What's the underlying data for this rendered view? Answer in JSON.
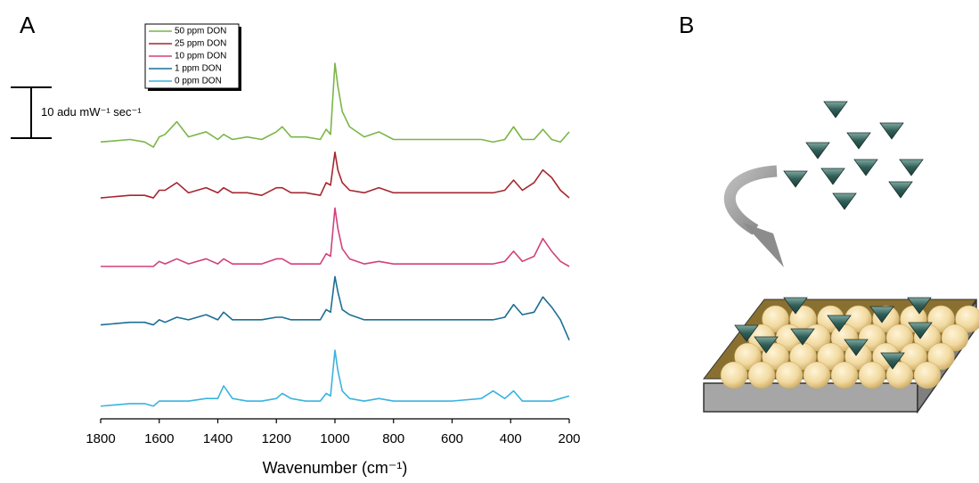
{
  "chart_data": {
    "type": "line",
    "panel_label": "A",
    "x_label": "Wavenumber (cm⁻¹)",
    "x": [
      1800,
      1700,
      1650,
      1620,
      1600,
      1580,
      1540,
      1500,
      1440,
      1400,
      1380,
      1350,
      1300,
      1250,
      1200,
      1180,
      1150,
      1100,
      1050,
      1030,
      1015,
      1000,
      990,
      975,
      950,
      900,
      850,
      800,
      700,
      600,
      500,
      460,
      420,
      390,
      360,
      320,
      290,
      260,
      230,
      200
    ],
    "xlim": [
      1800,
      200
    ],
    "xticks": [
      1800,
      1600,
      1400,
      1200,
      1000,
      800,
      600,
      400,
      200
    ],
    "ylim": [
      0,
      72
    ],
    "scale_bar": {
      "value": 10,
      "label": "10 adu mW⁻¹ sec⁻¹"
    },
    "series": [
      {
        "name": "50 ppm DON",
        "color": "#7ab648",
        "values": [
          54.5,
          55.0,
          54.5,
          53.5,
          55.5,
          56.0,
          58.5,
          55.5,
          56.5,
          55.0,
          56.0,
          55.0,
          55.5,
          55.0,
          56.5,
          57.5,
          55.5,
          55.5,
          55.0,
          57.0,
          56.0,
          70.0,
          65.5,
          60.5,
          57.5,
          55.5,
          56.5,
          55.0,
          55.0,
          55.0,
          55.0,
          54.5,
          55.0,
          57.5,
          55.0,
          55.0,
          57.0,
          55.0,
          54.5,
          56.5
        ]
      },
      {
        "name": "25 ppm DON",
        "color": "#a6262e",
        "values": [
          43.5,
          44.0,
          44.0,
          43.5,
          45.0,
          45.0,
          46.5,
          44.5,
          45.5,
          44.5,
          45.5,
          44.5,
          44.5,
          44.0,
          45.5,
          45.5,
          44.5,
          44.5,
          44.0,
          46.5,
          46.0,
          52.5,
          49.0,
          46.5,
          45.0,
          44.5,
          45.5,
          44.5,
          44.5,
          44.5,
          44.5,
          44.5,
          45.0,
          47.0,
          45.0,
          46.5,
          49.0,
          47.5,
          45.0,
          43.5
        ]
      },
      {
        "name": "10 ppm DON",
        "color": "#d2417a",
        "values": [
          30.0,
          30.0,
          30.0,
          30.0,
          31.0,
          30.5,
          31.5,
          30.5,
          31.5,
          30.5,
          31.5,
          30.5,
          30.5,
          30.5,
          31.5,
          31.5,
          30.5,
          30.5,
          30.5,
          32.5,
          32.0,
          41.5,
          37.5,
          33.5,
          31.5,
          30.5,
          31.0,
          30.5,
          30.5,
          30.5,
          30.5,
          30.5,
          31.0,
          33.0,
          31.0,
          32.0,
          35.5,
          33.0,
          31.0,
          30.0
        ]
      },
      {
        "name": "1 ppm DON",
        "color": "#1c6e94",
        "values": [
          18.5,
          19.0,
          19.0,
          18.5,
          19.5,
          19.0,
          20.0,
          19.5,
          20.5,
          19.5,
          21.0,
          19.5,
          19.5,
          19.5,
          20.0,
          20.0,
          19.5,
          19.5,
          19.5,
          21.5,
          21.0,
          28.0,
          25.0,
          21.5,
          20.5,
          19.5,
          19.5,
          19.5,
          19.5,
          19.5,
          19.5,
          19.5,
          20.0,
          22.5,
          20.5,
          21.0,
          24.0,
          22.0,
          19.5,
          15.5
        ]
      },
      {
        "name": "0 ppm DON",
        "color": "#39b3df",
        "values": [
          2.5,
          3.0,
          3.0,
          2.5,
          3.5,
          3.5,
          3.5,
          3.5,
          4.0,
          4.0,
          6.5,
          4.0,
          3.5,
          3.5,
          4.0,
          5.0,
          4.0,
          3.5,
          3.5,
          5.0,
          4.5,
          13.5,
          9.5,
          5.5,
          4.0,
          3.5,
          4.0,
          3.5,
          3.5,
          3.5,
          4.0,
          5.5,
          4.0,
          5.5,
          3.5,
          3.5,
          3.5,
          3.5,
          4.0,
          4.5
        ]
      }
    ]
  },
  "diagram": {
    "panel_label": "B"
  }
}
